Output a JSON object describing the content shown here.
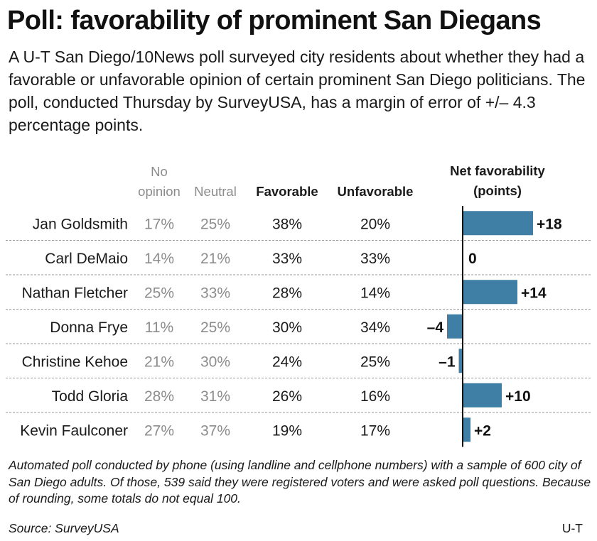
{
  "title": "Poll: favorability of prominent San Diegans",
  "subtitle": "A U-T San Diego/10News poll surveyed city residents about whether they had a favorable or unfavorable opinion of certain prominent San Diego politicians. The poll, conducted Thursday by SurveyUSA, has a margin of error of +/– 4.3 percentage points.",
  "footnote": "Automated poll conducted by phone (using landline and cellphone numbers) with a sample of 600 city of San Diego adults. Of those, 539 said they were registered voters and were asked poll questions. Because of rounding, some totals do not equal 100.",
  "source": "Source: SurveyUSA",
  "credit": "U-T",
  "colors": {
    "bar": "#3f7fa5",
    "muted_text": "#8c8c8c",
    "rule": "#9a9a9a",
    "axis": "#111111"
  },
  "chart_data": {
    "type": "table",
    "columns": [
      {
        "key": "no_opinion",
        "label_lines": [
          "No",
          "opinion"
        ]
      },
      {
        "key": "neutral",
        "label_lines": [
          "Neutral"
        ]
      },
      {
        "key": "favorable",
        "label_lines": [
          "Favorable"
        ]
      },
      {
        "key": "unfavorable",
        "label_lines": [
          "Unfavorable"
        ]
      }
    ],
    "net_header_lines": [
      "Net favorability",
      "(points)"
    ],
    "rows": [
      {
        "name": "Jan Goldsmith",
        "no_opinion": "17%",
        "neutral": "25%",
        "favorable": "38%",
        "unfavorable": "20%",
        "net": 18,
        "net_label": "+18"
      },
      {
        "name": "Carl DeMaio",
        "no_opinion": "14%",
        "neutral": "21%",
        "favorable": "33%",
        "unfavorable": "33%",
        "net": 0,
        "net_label": "0"
      },
      {
        "name": "Nathan Fletcher",
        "no_opinion": "25%",
        "neutral": "33%",
        "favorable": "28%",
        "unfavorable": "14%",
        "net": 14,
        "net_label": "+14"
      },
      {
        "name": "Donna Frye",
        "no_opinion": "11%",
        "neutral": "25%",
        "favorable": "30%",
        "unfavorable": "34%",
        "net": -4,
        "net_label": "–4"
      },
      {
        "name": "Christine Kehoe",
        "no_opinion": "21%",
        "neutral": "30%",
        "favorable": "24%",
        "unfavorable": "25%",
        "net": -1,
        "net_label": "–1"
      },
      {
        "name": "Todd Gloria",
        "no_opinion": "28%",
        "neutral": "31%",
        "favorable": "26%",
        "unfavorable": "16%",
        "net": 10,
        "net_label": "+10"
      },
      {
        "name": "Kevin Faulconer",
        "no_opinion": "27%",
        "neutral": "37%",
        "favorable": "19%",
        "unfavorable": "17%",
        "net": 2,
        "net_label": "+2"
      }
    ]
  }
}
